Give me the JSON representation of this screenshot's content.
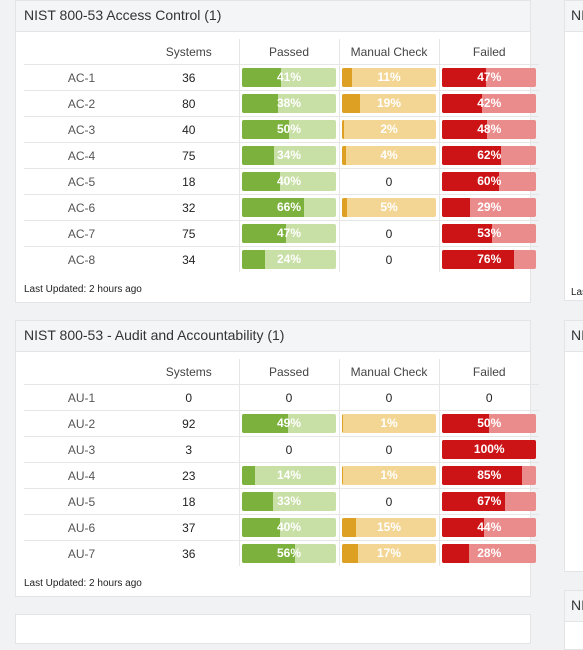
{
  "cards": [
    {
      "title": "NIST 800-53 Access Control (1)",
      "headers": [
        "",
        "Systems",
        "Passed",
        "Manual Check",
        "Failed"
      ],
      "rows": [
        {
          "label": "AC-1",
          "systems": "36",
          "passed": {
            "pct": 41,
            "text": "41%"
          },
          "manual": {
            "pct": 11,
            "text": "11%"
          },
          "failed": {
            "pct": 47,
            "text": "47%"
          }
        },
        {
          "label": "AC-2",
          "systems": "80",
          "passed": {
            "pct": 38,
            "text": "38%"
          },
          "manual": {
            "pct": 19,
            "text": "19%"
          },
          "failed": {
            "pct": 42,
            "text": "42%"
          }
        },
        {
          "label": "AC-3",
          "systems": "40",
          "passed": {
            "pct": 50,
            "text": "50%"
          },
          "manual": {
            "pct": 2,
            "text": "2%"
          },
          "failed": {
            "pct": 48,
            "text": "48%"
          }
        },
        {
          "label": "AC-4",
          "systems": "75",
          "passed": {
            "pct": 34,
            "text": "34%"
          },
          "manual": {
            "pct": 4,
            "text": "4%"
          },
          "failed": {
            "pct": 62,
            "text": "62%"
          }
        },
        {
          "label": "AC-5",
          "systems": "18",
          "passed": {
            "pct": 40,
            "text": "40%"
          },
          "manual": {
            "pct": 0,
            "text": "0"
          },
          "failed": {
            "pct": 60,
            "text": "60%"
          }
        },
        {
          "label": "AC-6",
          "systems": "32",
          "passed": {
            "pct": 66,
            "text": "66%"
          },
          "manual": {
            "pct": 5,
            "text": "5%"
          },
          "failed": {
            "pct": 29,
            "text": "29%"
          }
        },
        {
          "label": "AC-7",
          "systems": "75",
          "passed": {
            "pct": 47,
            "text": "47%"
          },
          "manual": {
            "pct": 0,
            "text": "0"
          },
          "failed": {
            "pct": 53,
            "text": "53%"
          }
        },
        {
          "label": "AC-8",
          "systems": "34",
          "passed": {
            "pct": 24,
            "text": "24%"
          },
          "manual": {
            "pct": 0,
            "text": "0"
          },
          "failed": {
            "pct": 76,
            "text": "76%"
          }
        }
      ],
      "footer": "Last Updated: 2 hours ago"
    },
    {
      "title": "NIST 800-53 - Audit and Accountability (1)",
      "headers": [
        "",
        "Systems",
        "Passed",
        "Manual Check",
        "Failed"
      ],
      "rows": [
        {
          "label": "AU-1",
          "systems": "0",
          "passed": {
            "pct": 0,
            "text": "0"
          },
          "manual": {
            "pct": 0,
            "text": "0"
          },
          "failed": {
            "pct": 0,
            "text": "0"
          }
        },
        {
          "label": "AU-2",
          "systems": "92",
          "passed": {
            "pct": 49,
            "text": "49%"
          },
          "manual": {
            "pct": 1,
            "text": "1%"
          },
          "failed": {
            "pct": 50,
            "text": "50%"
          }
        },
        {
          "label": "AU-3",
          "systems": "3",
          "passed": {
            "pct": 0,
            "text": "0"
          },
          "manual": {
            "pct": 0,
            "text": "0"
          },
          "failed": {
            "pct": 100,
            "text": "100%"
          }
        },
        {
          "label": "AU-4",
          "systems": "23",
          "passed": {
            "pct": 14,
            "text": "14%"
          },
          "manual": {
            "pct": 1,
            "text": "1%"
          },
          "failed": {
            "pct": 85,
            "text": "85%"
          }
        },
        {
          "label": "AU-5",
          "systems": "18",
          "passed": {
            "pct": 33,
            "text": "33%"
          },
          "manual": {
            "pct": 0,
            "text": "0"
          },
          "failed": {
            "pct": 67,
            "text": "67%"
          }
        },
        {
          "label": "AU-6",
          "systems": "37",
          "passed": {
            "pct": 40,
            "text": "40%"
          },
          "manual": {
            "pct": 15,
            "text": "15%"
          },
          "failed": {
            "pct": 44,
            "text": "44%"
          }
        },
        {
          "label": "AU-7",
          "systems": "36",
          "passed": {
            "pct": 56,
            "text": "56%"
          },
          "manual": {
            "pct": 17,
            "text": "17%"
          },
          "failed": {
            "pct": 28,
            "text": "28%"
          }
        }
      ],
      "footer": "Last Updated: 2 hours ago"
    }
  ],
  "partial_right_cards": [
    {
      "title": "NI",
      "footer": "Las"
    },
    {
      "title": "NI"
    },
    {
      "title": "NI"
    }
  ],
  "colors": {
    "passed": "#7bb13c",
    "passed_bg": "#c8dfa6",
    "manual": "#dda023",
    "manual_bg": "#f3d694",
    "failed": "#cc1417",
    "failed_bg": "#eb8c8c"
  }
}
